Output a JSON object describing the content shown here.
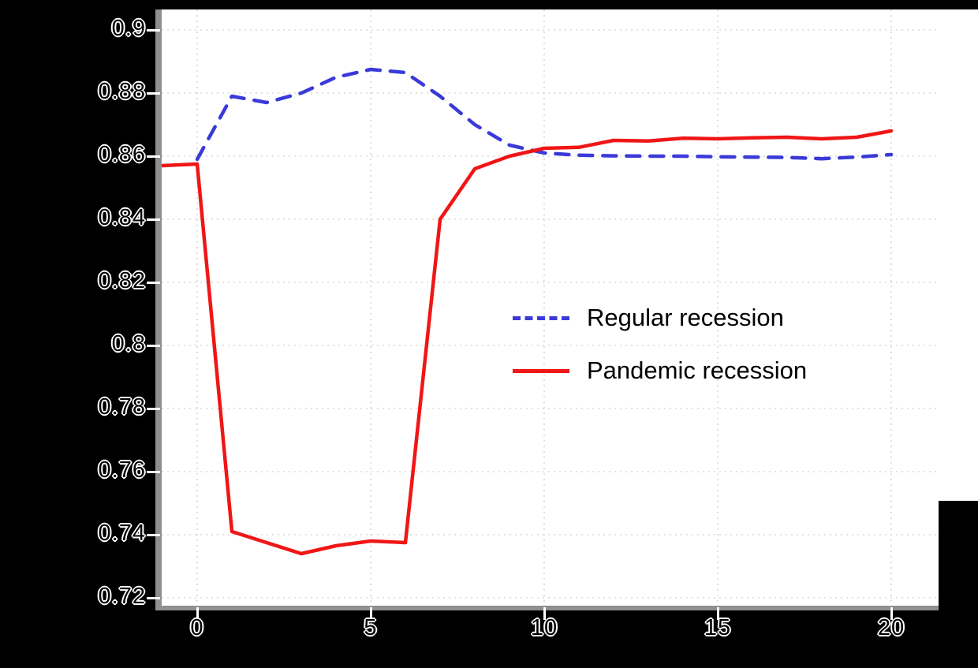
{
  "chart_data": {
    "type": "line",
    "title": "",
    "xlabel": "",
    "ylabel": "",
    "xlim": [
      -1,
      21.4
    ],
    "ylim": [
      0.717,
      0.9065
    ],
    "grid": true,
    "legend_position": "center-right",
    "x_ticks": [
      {
        "label": "0",
        "value": 0
      },
      {
        "label": "5",
        "value": 5
      },
      {
        "label": "10",
        "value": 10
      },
      {
        "label": "15",
        "value": 15
      },
      {
        "label": "20",
        "value": 20
      }
    ],
    "y_ticks": [
      {
        "label": "0.9",
        "value": 0.9
      },
      {
        "label": "0.88",
        "value": 0.88
      },
      {
        "label": "0.86",
        "value": 0.86
      },
      {
        "label": "0.84",
        "value": 0.84
      },
      {
        "label": "0.82",
        "value": 0.82
      },
      {
        "label": "0.8",
        "value": 0.8
      },
      {
        "label": "0.78",
        "value": 0.78
      },
      {
        "label": "0.76",
        "value": 0.76
      },
      {
        "label": "0.74",
        "value": 0.74
      },
      {
        "label": "0.72",
        "value": 0.72
      }
    ],
    "series": [
      {
        "name": "Regular recession",
        "color": "#3a3ad9",
        "style": "dashed",
        "x": [
          0,
          1,
          2,
          3,
          4,
          5,
          6,
          7,
          8,
          9,
          10,
          11,
          12,
          13,
          14,
          15,
          16,
          17,
          18,
          19,
          20
        ],
        "values": [
          0.859,
          0.879,
          0.877,
          0.88,
          0.885,
          0.8875,
          0.8865,
          0.879,
          0.87,
          0.8635,
          0.861,
          0.8603,
          0.8601,
          0.86,
          0.86,
          0.8598,
          0.8597,
          0.8596,
          0.8592,
          0.8597,
          0.8605
        ]
      },
      {
        "name": "Pandemic recession",
        "color": "#f01616",
        "style": "solid",
        "x": [
          -1,
          0,
          1,
          2,
          3,
          4,
          5,
          6,
          7,
          8,
          9,
          10,
          11,
          12,
          13,
          14,
          15,
          16,
          17,
          18,
          19,
          20
        ],
        "values": [
          0.857,
          0.8575,
          0.741,
          0.7375,
          0.734,
          0.7365,
          0.738,
          0.7375,
          0.84,
          0.856,
          0.86,
          0.8625,
          0.8628,
          0.865,
          0.8648,
          0.8657,
          0.8655,
          0.8658,
          0.866,
          0.8655,
          0.866,
          0.868
        ]
      }
    ],
    "colors": {
      "background": "#000000",
      "plot_bg": "#ffffff",
      "grid": "#d9d9d9",
      "spine": "#8f8f8f",
      "tick": "#ffffff",
      "tick_label_fill": "#000000",
      "tick_label_outline": "#ffffff",
      "legend_text": "#000000"
    }
  }
}
